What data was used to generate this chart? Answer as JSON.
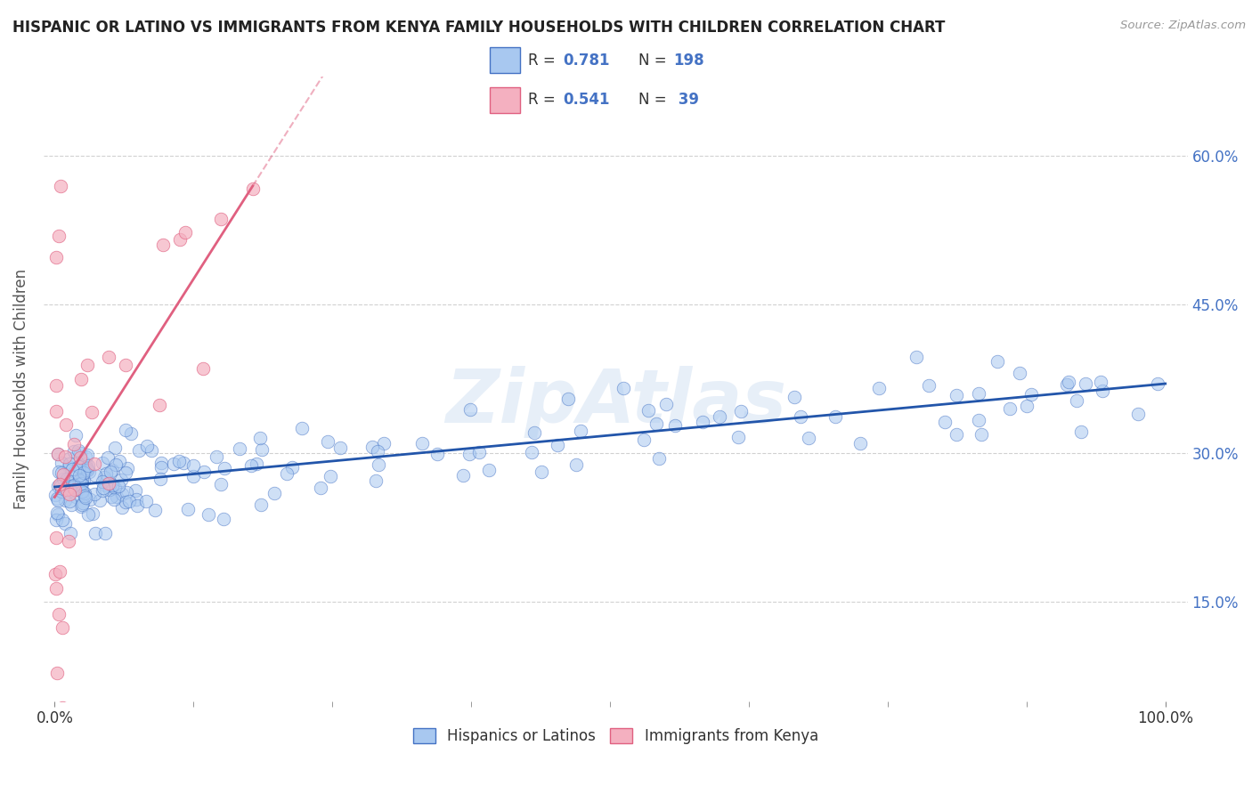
{
  "title": "HISPANIC OR LATINO VS IMMIGRANTS FROM KENYA FAMILY HOUSEHOLDS WITH CHILDREN CORRELATION CHART",
  "source": "Source: ZipAtlas.com",
  "ylabel": "Family Households with Children",
  "y_ticks": [
    0.15,
    0.3,
    0.45,
    0.6
  ],
  "y_tick_labels": [
    "15.0%",
    "30.0%",
    "45.0%",
    "60.0%"
  ],
  "x_ticks": [
    0.0,
    1.0
  ],
  "x_tick_labels": [
    "0.0%",
    "100.0%"
  ],
  "blue_R": 0.781,
  "blue_N": 198,
  "pink_R": 0.541,
  "pink_N": 39,
  "blue_fill": "#A8C8F0",
  "pink_fill": "#F4B0C0",
  "blue_edge": "#4472C4",
  "pink_edge": "#E06080",
  "blue_line": "#2255AA",
  "pink_line": "#E06080",
  "watermark": "ZipAtlas",
  "legend_labels": [
    "Hispanics or Latinos",
    "Immigrants from Kenya"
  ],
  "background_color": "#FFFFFF",
  "grid_color": "#CCCCCC",
  "title_color": "#222222",
  "right_tick_color": "#4472C4",
  "ylim": [
    0.05,
    0.68
  ],
  "xlim": [
    -0.01,
    1.02
  ],
  "seed": 7
}
